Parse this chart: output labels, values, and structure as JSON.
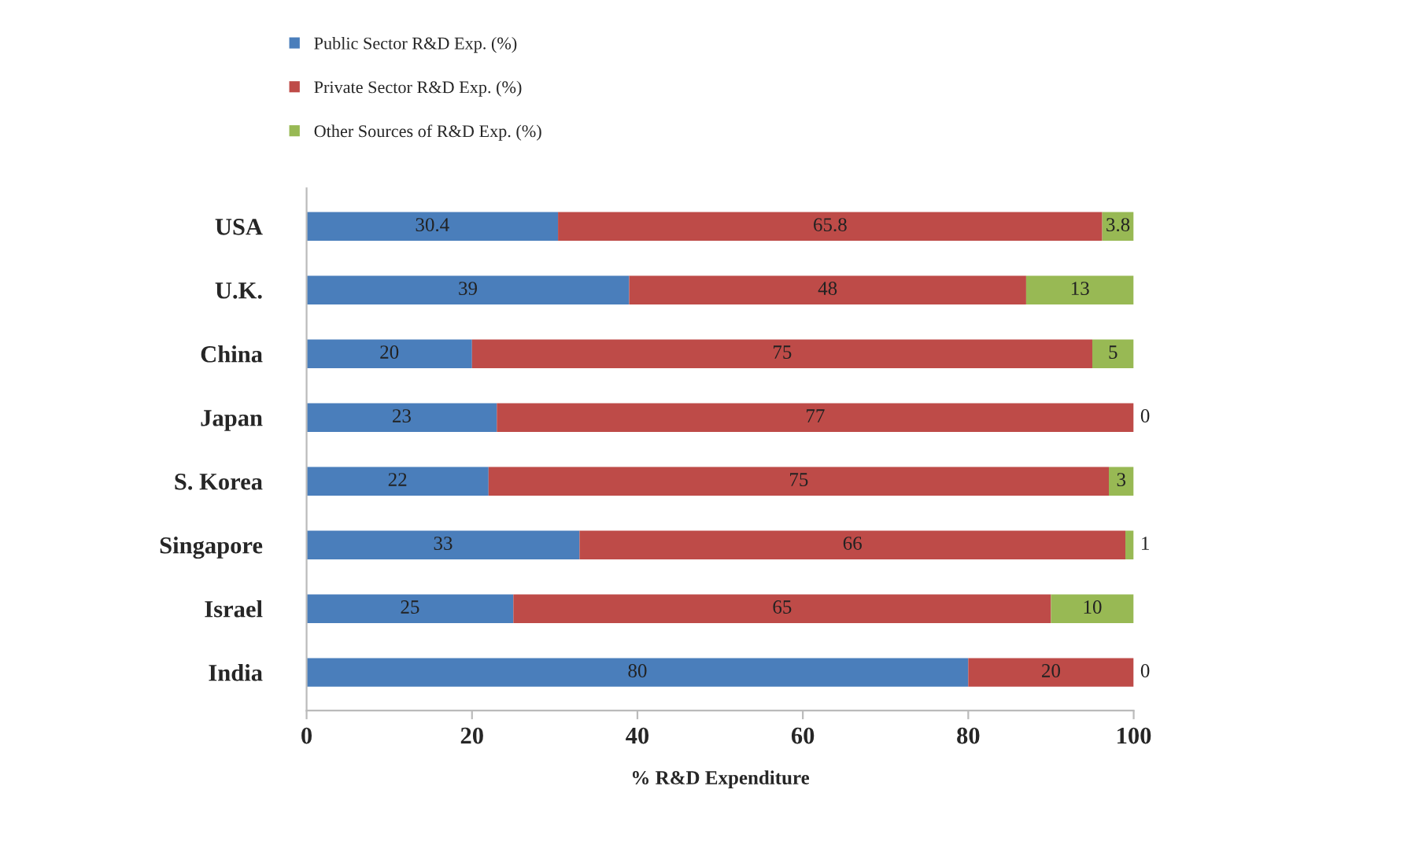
{
  "chart_data": {
    "type": "bar",
    "orientation": "horizontal",
    "stacked": true,
    "xlabel": "% R&D Expenditure",
    "categories": [
      "USA",
      "U.K.",
      "China",
      "Japan",
      "S. Korea",
      "Singapore",
      "Israel",
      "India"
    ],
    "series": [
      {
        "name": "Public Sector R&D Exp. (%)",
        "color": "#4a7ebb",
        "values": [
          30.4,
          39,
          20,
          23,
          22,
          33,
          25,
          80
        ]
      },
      {
        "name": "Private Sector R&D Exp. (%)",
        "color": "#be4b48",
        "values": [
          65.8,
          48,
          75,
          77,
          75,
          66,
          65,
          20
        ]
      },
      {
        "name": "Other Sources of R&D Exp. (%)",
        "color": "#98b954",
        "values": [
          3.8,
          13,
          5,
          0,
          3,
          1,
          10,
          0
        ]
      }
    ],
    "xlim": [
      0,
      100
    ],
    "xticks": [
      0,
      20,
      40,
      60,
      80,
      100
    ],
    "data_labels": true,
    "grid": false,
    "legend": "top left"
  }
}
